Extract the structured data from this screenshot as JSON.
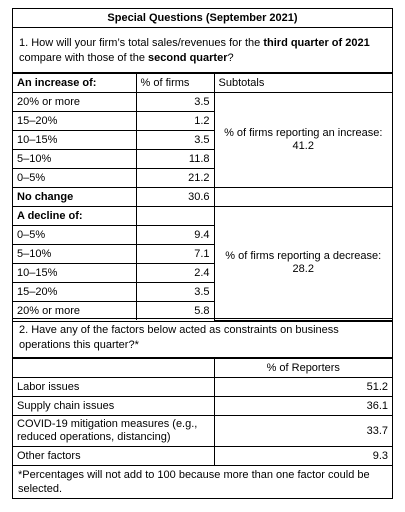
{
  "title": "Special Questions (September 2021)",
  "q1": {
    "question": [
      "1. How will your firm’s total sales/revenues for the ",
      "third quarter of 2021",
      " compare with those of the ",
      "second quarter",
      "?"
    ],
    "header": [
      "An increase of:",
      "% of firms",
      "Subtotals"
    ],
    "increase_rows": [
      [
        "20% or more",
        3.5
      ],
      [
        "15–20%",
        1.2
      ],
      [
        "10–15%",
        3.5
      ],
      [
        "5–10%",
        11.8
      ],
      [
        "0–5%",
        21.2
      ]
    ],
    "increase_subtotal": {
      "label": "% of firms reporting an increase:",
      "value": 41.2
    },
    "no_change": [
      "No change",
      30.6
    ],
    "decline_label": "A decline of:",
    "decline_rows": [
      [
        "0–5%",
        9.4
      ],
      [
        "5–10%",
        7.1
      ],
      [
        "10–15%",
        2.4
      ],
      [
        "15–20%",
        3.5
      ],
      [
        "20% or more",
        5.8
      ]
    ],
    "decline_subtotal": {
      "label": "% of firms reporting a decrease:",
      "value": 28.2
    }
  },
  "q2": {
    "question": "2. Have any of the factors below acted as constraints on business operations this quarter?*",
    "header": "% of Reporters",
    "rows": [
      [
        "Labor issues",
        51.2
      ],
      [
        "Supply chain issues",
        36.1
      ],
      [
        "COVID-19 mitigation measures (e.g., reduced operations, distancing)",
        33.7
      ],
      [
        "Other factors",
        9.3
      ]
    ],
    "footnote": "*Percentages will not add to 100 because more than one factor could be selected."
  }
}
